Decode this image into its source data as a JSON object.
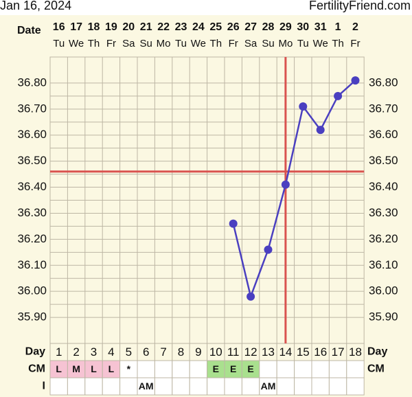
{
  "chart_data": {
    "type": "line",
    "title": "Jan 16, 2024",
    "source": "FertilityFriend.com",
    "x_label": "Date",
    "categories": [
      "16",
      "17",
      "18",
      "19",
      "20",
      "21",
      "22",
      "23",
      "24",
      "25",
      "26",
      "27",
      "28",
      "29",
      "30",
      "31",
      "1",
      "2"
    ],
    "weekdays": [
      "Tu",
      "We",
      "Th",
      "Fr",
      "Sa",
      "Su",
      "Mo",
      "Tu",
      "We",
      "Th",
      "Fr",
      "Sa",
      "Su",
      "Mo",
      "Tu",
      "We",
      "Th",
      "Fr"
    ],
    "row_labels": {
      "day": "Day",
      "cm": "CM",
      "intercourse": "I"
    },
    "days": [
      "1",
      "2",
      "3",
      "4",
      "5",
      "6",
      "7",
      "8",
      "9",
      "10",
      "11",
      "12",
      "13",
      "14",
      "15",
      "16",
      "17",
      "18"
    ],
    "cm": [
      "L",
      "M",
      "L",
      "L",
      "*",
      null,
      null,
      null,
      null,
      "E",
      "E",
      "E",
      null,
      null,
      null,
      null,
      null,
      null
    ],
    "cm_colors": {
      "L": "#f6c3d3",
      "M": "#f6c3d3",
      "E": "#a9e08e"
    },
    "intercourse": [
      null,
      null,
      null,
      null,
      null,
      "AM",
      null,
      null,
      null,
      null,
      null,
      null,
      "AM",
      null,
      null,
      null,
      null,
      null
    ],
    "series": [
      {
        "name": "Temperature",
        "color": "#4a3fc0",
        "values": [
          null,
          null,
          null,
          null,
          null,
          null,
          null,
          null,
          null,
          null,
          36.26,
          35.98,
          36.16,
          36.41,
          36.71,
          36.62,
          36.75,
          36.81
        ]
      }
    ],
    "coverline": 36.46,
    "ovulation_day": 14,
    "marker_color": "#d9534f",
    "ylim": [
      35.8,
      36.9
    ],
    "yticks": [
      {
        "value": 36.8,
        "label": "36.80"
      },
      {
        "value": 36.7,
        "label": "36.70"
      },
      {
        "value": 36.6,
        "label": "36.60"
      },
      {
        "value": 36.5,
        "label": "36.50"
      },
      {
        "value": 36.4,
        "label": "36.40"
      },
      {
        "value": 36.3,
        "label": "36.30"
      },
      {
        "value": 36.2,
        "label": "36.20"
      },
      {
        "value": 36.1,
        "label": "36.10"
      },
      {
        "value": 36.0,
        "label": "36.00"
      },
      {
        "value": 35.9,
        "label": "35.90"
      }
    ],
    "grid": true
  }
}
